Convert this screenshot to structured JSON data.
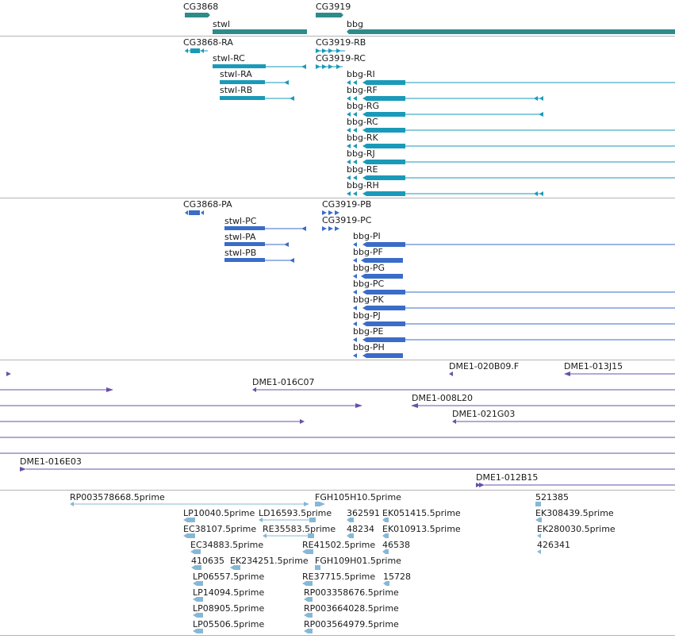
{
  "colors": {
    "gene": "#2e8b8b",
    "rna": "#1a9ab8",
    "protein": "#3a6cc8",
    "clone": "#6a50a8",
    "est": "#86b8d6",
    "separator": "#b4b4b4"
  },
  "tracks": {
    "genes": [
      {
        "label": "CG3868",
        "name": "gene-cg3868"
      },
      {
        "label": "stwl",
        "name": "gene-stwl"
      },
      {
        "label": "CG3919",
        "name": "gene-cg3919"
      },
      {
        "label": "bbg",
        "name": "gene-bbg"
      }
    ],
    "transcripts": [
      {
        "label": "CG3868-RA"
      },
      {
        "label": "stwl-RC"
      },
      {
        "label": "stwl-RA"
      },
      {
        "label": "stwl-RB"
      },
      {
        "label": "CG3919-RB"
      },
      {
        "label": "CG3919-RC"
      },
      {
        "label": "bbg-RI"
      },
      {
        "label": "bbg-RF"
      },
      {
        "label": "bbg-RG"
      },
      {
        "label": "bbg-RC"
      },
      {
        "label": "bbg-RK"
      },
      {
        "label": "bbg-RJ"
      },
      {
        "label": "bbg-RE"
      },
      {
        "label": "bbg-RH"
      }
    ],
    "proteins": [
      {
        "label": "CG3868-PA"
      },
      {
        "label": "stwl-PC"
      },
      {
        "label": "stwl-PA"
      },
      {
        "label": "stwl-PB"
      },
      {
        "label": "CG3919-PB"
      },
      {
        "label": "CG3919-PC"
      },
      {
        "label": "bbg-PI"
      },
      {
        "label": "bbg-PF"
      },
      {
        "label": "bbg-PG"
      },
      {
        "label": "bbg-PC"
      },
      {
        "label": "bbg-PK"
      },
      {
        "label": "bbg-PJ"
      },
      {
        "label": "bbg-PE"
      },
      {
        "label": "bbg-PH"
      }
    ],
    "clones": [
      {
        "label": "DME1-020B09.F"
      },
      {
        "label": "DME1-013J15"
      },
      {
        "label": "DME1-016C07"
      },
      {
        "label": "DME1-008L20"
      },
      {
        "label": "DME1-021G03"
      },
      {
        "label": "DME1-016E03"
      },
      {
        "label": "DME1-012B15"
      }
    ],
    "ests": [
      {
        "label": "RP003578668.5prime"
      },
      {
        "label": "FGH105H10.5prime"
      },
      {
        "label": "521385"
      },
      {
        "label": "LP10040.5prime"
      },
      {
        "label": "LD16593.5prime"
      },
      {
        "label": "362591"
      },
      {
        "label": "EK051415.5prime"
      },
      {
        "label": "EK308439.5prime"
      },
      {
        "label": "EC38107.5prime"
      },
      {
        "label": "RE35583.5prime"
      },
      {
        "label": "48234"
      },
      {
        "label": "EK010913.5prime"
      },
      {
        "label": "EK280030.5prime"
      },
      {
        "label": "EC34883.5prime"
      },
      {
        "label": "RE41502.5prime"
      },
      {
        "label": "46538"
      },
      {
        "label": "426341"
      },
      {
        "label": "410635"
      },
      {
        "label": "EK234251.5prime"
      },
      {
        "label": "FGH109H01.5prime"
      },
      {
        "label": "LP06557.5prime"
      },
      {
        "label": "RE37715.5prime"
      },
      {
        "label": "15728"
      },
      {
        "label": "LP14094.5prime"
      },
      {
        "label": "RP003358676.5prime"
      },
      {
        "label": "LP08905.5prime"
      },
      {
        "label": "RP003664028.5prime"
      },
      {
        "label": "LP05506.5prime"
      },
      {
        "label": "RP003564979.5prime"
      }
    ]
  }
}
